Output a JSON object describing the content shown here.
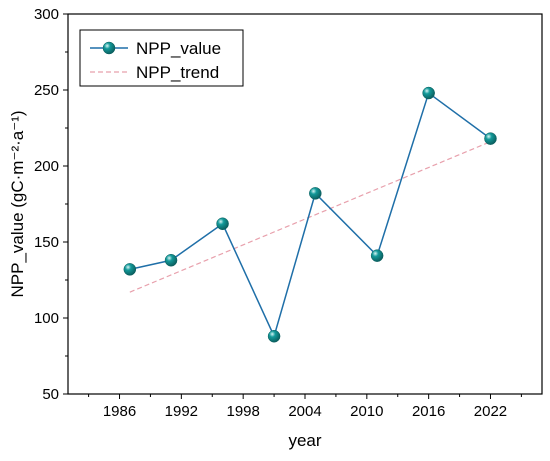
{
  "chart_data": {
    "type": "line",
    "xlabel": "year",
    "ylabel": "NPP_value (gC·m⁻²·a⁻¹)",
    "xlim": [
      1981,
      2027
    ],
    "ylim": [
      50,
      300
    ],
    "x_ticks": [
      1986,
      1992,
      1998,
      2004,
      2010,
      2016,
      2022
    ],
    "y_ticks": [
      50,
      100,
      150,
      200,
      250,
      300
    ],
    "grid": false,
    "legend_position": "top-left",
    "legend": [
      "NPP_value",
      "NPP_trend"
    ],
    "series": [
      {
        "name": "NPP_value",
        "color": "#1F6FA8",
        "marker_color": "#139A9A",
        "x": [
          1987,
          1991,
          1996,
          2001,
          2005,
          2011,
          2016,
          2022
        ],
        "y": [
          132,
          138,
          162,
          88,
          182,
          141,
          248,
          218
        ]
      },
      {
        "name": "NPP_trend",
        "color": "#E8A0AC",
        "style": "dashed",
        "x": [
          1987,
          2022
        ],
        "y": [
          117,
          216
        ]
      }
    ]
  }
}
